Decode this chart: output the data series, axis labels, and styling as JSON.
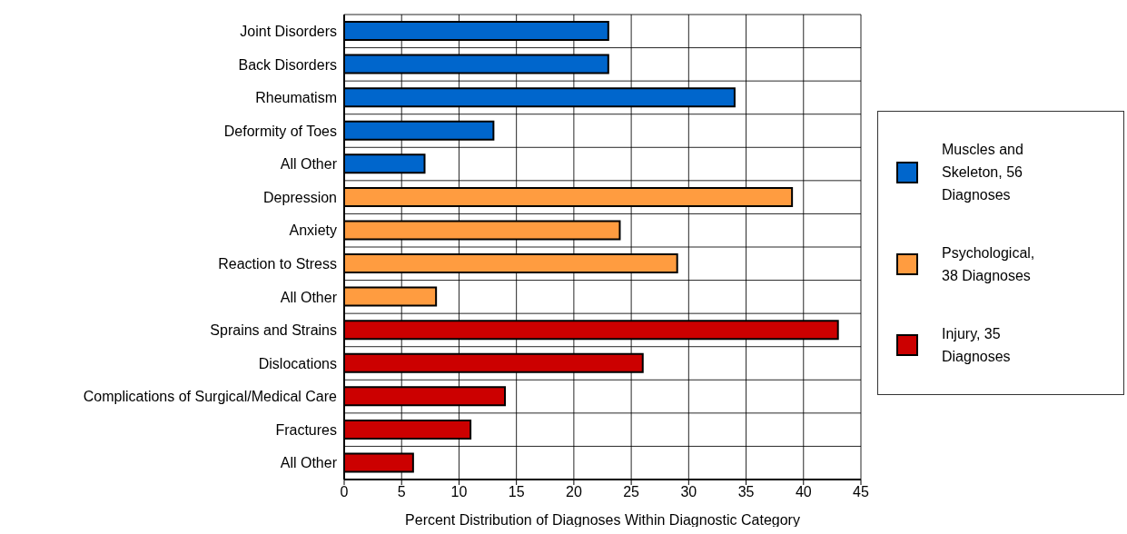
{
  "chart_data": {
    "type": "bar",
    "orientation": "horizontal",
    "xlabel": "Percent Distribution of Diagnoses Within Diagnostic Category",
    "categories": [
      "Joint Disorders",
      "Back Disorders",
      "Rheumatism",
      "Deformity of Toes",
      "All Other",
      "Depression",
      "Anxiety",
      "Reaction to Stress",
      "All Other",
      "Sprains and Strains",
      "Dislocations",
      "Complications of Surgical/Medical Care",
      "Fractures",
      "All Other"
    ],
    "series": [
      {
        "name": "Muscles and Skeleton, 56 Diagnoses",
        "color": "#0066cc",
        "values": [
          23,
          23,
          34,
          13,
          7,
          null,
          null,
          null,
          null,
          null,
          null,
          null,
          null,
          null
        ]
      },
      {
        "name": "Psychological, 38 Diagnoses",
        "color": "#ff9c40",
        "values": [
          null,
          null,
          null,
          null,
          null,
          39,
          24,
          29,
          8,
          null,
          null,
          null,
          null,
          null
        ]
      },
      {
        "name": "Injury, 35 Diagnoses",
        "color": "#cc0000",
        "values": [
          null,
          null,
          null,
          null,
          null,
          null,
          null,
          null,
          null,
          43,
          26,
          14,
          11,
          6
        ]
      }
    ],
    "xlim": [
      0,
      45
    ],
    "xticks": [
      0,
      5,
      10,
      15,
      20,
      25,
      30,
      35,
      40,
      45
    ],
    "grid": true,
    "legend": "right"
  }
}
